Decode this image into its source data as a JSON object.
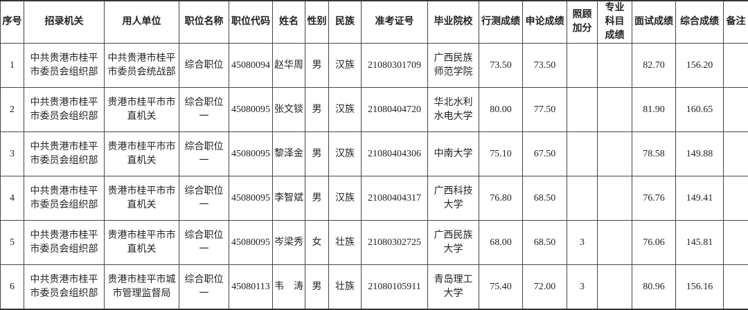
{
  "headers": [
    "序号",
    "招录机关",
    "用人单位",
    "职位名称",
    "职位代码",
    "姓名",
    "性别",
    "民族",
    "准考证号",
    "毕业院校",
    "行测成绩",
    "申论成绩",
    "照顾加分",
    "专业科目成绩",
    "面试成绩",
    "综合成绩",
    "备注"
  ],
  "rows": [
    [
      "1",
      "中共贵港市桂平市委员会组织部",
      "中共贵港市桂平市委员会统战部",
      "综合职位",
      "45080094",
      "赵华周",
      "男",
      "汉族",
      "21080301709",
      "广西民族师范学院",
      "73.50",
      "73.50",
      "",
      "",
      "82.70",
      "156.20",
      ""
    ],
    [
      "2",
      "中共贵港市桂平市委员会组织部",
      "贵港市桂平市市直机关",
      "综合职位一",
      "45080095",
      "张文锬",
      "男",
      "汉族",
      "21080404720",
      "华北水利水电大学",
      "80.00",
      "77.50",
      "",
      "",
      "81.90",
      "160.65",
      ""
    ],
    [
      "3",
      "中共贵港市桂平市委员会组织部",
      "贵港市桂平市市直机关",
      "综合职位一",
      "45080095",
      "黎泽金",
      "男",
      "汉族",
      "21080404306",
      "中南大学",
      "75.10",
      "67.50",
      "",
      "",
      "78.58",
      "149.88",
      ""
    ],
    [
      "4",
      "中共贵港市桂平市委员会组织部",
      "贵港市桂平市市直机关",
      "综合职位一",
      "45080095",
      "李智斌",
      "男",
      "汉族",
      "21080404317",
      "广西科技大学",
      "76.80",
      "68.50",
      "",
      "",
      "76.76",
      "149.41",
      ""
    ],
    [
      "5",
      "中共贵港市桂平市委员会组织部",
      "贵港市桂平市市直机关",
      "综合职位一",
      "45080095",
      "岑梁秀",
      "女",
      "壮族",
      "21080302725",
      "广西民族大学",
      "68.00",
      "68.50",
      "3",
      "",
      "76.06",
      "145.81",
      ""
    ],
    [
      "6",
      "中共贵港市桂平市委员会组织部",
      "贵港市桂平市城市管理监督局",
      "综合职位一",
      "45080113",
      "韦　涛",
      "男",
      "壮族",
      "21080105911",
      "青岛理工大学",
      "75.40",
      "72.00",
      "3",
      "",
      "80.96",
      "156.16",
      ""
    ]
  ]
}
